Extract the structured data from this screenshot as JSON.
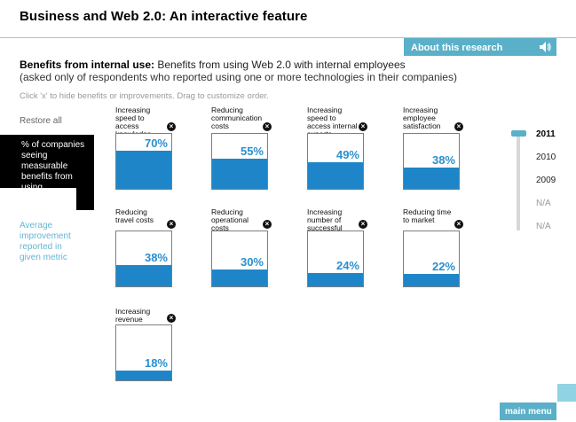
{
  "header": {
    "title": "Business and Web 2.0:  An interactive feature",
    "about_label": "About this research",
    "about_icon": "speaker-icon"
  },
  "intro": {
    "bold": "Benefits from internal use:",
    "text": " Benefits from using Web 2.0 with internal employees",
    "sub": "(asked only of respondents who reported using one or more technologies in their companies)",
    "hint": "Click 'x' to hide benefits or improvements. Drag to customize order."
  },
  "sidebar": {
    "restore_label": "Restore all",
    "selected_metric": "% of companies seeing measurable benefits from using technologies internally",
    "alt_metric": "Average improvement reported in given metric"
  },
  "cards": [
    {
      "label": "Increasing speed to access knowledge",
      "value_text": "70%",
      "value": 70
    },
    {
      "label": "Reducing communication costs",
      "value_text": "55%",
      "value": 55
    },
    {
      "label": "Increasing speed to access internal experts",
      "value_text": "49%",
      "value": 49
    },
    {
      "label": "Increasing employee satisfaction",
      "value_text": "38%",
      "value": 38
    },
    {
      "label": "Reducing travel costs",
      "value_text": "38%",
      "value": 38
    },
    {
      "label": "Reducing operational costs",
      "value_text": "30%",
      "value": 30
    },
    {
      "label": "Increasing number of successful innovations",
      "value_text": "24%",
      "value": 24
    },
    {
      "label": "Reducing time to market",
      "value_text": "22%",
      "value": 22
    },
    {
      "label": "Increasing revenue",
      "value_text": "18%",
      "value": 18
    }
  ],
  "close_glyph": "×",
  "years": [
    {
      "label": "2011",
      "state": "active"
    },
    {
      "label": "2010",
      "state": "normal"
    },
    {
      "label": "2009",
      "state": "normal"
    },
    {
      "label": "N/A",
      "state": "na"
    },
    {
      "label": "N/A",
      "state": "na"
    }
  ],
  "footer": {
    "main_menu_label": "main menu"
  },
  "colors": {
    "accent": "#5ab0c8",
    "bar": "#1e86c8",
    "pct_text": "#2a8fcf",
    "alt_metric": "#66b6d3"
  }
}
